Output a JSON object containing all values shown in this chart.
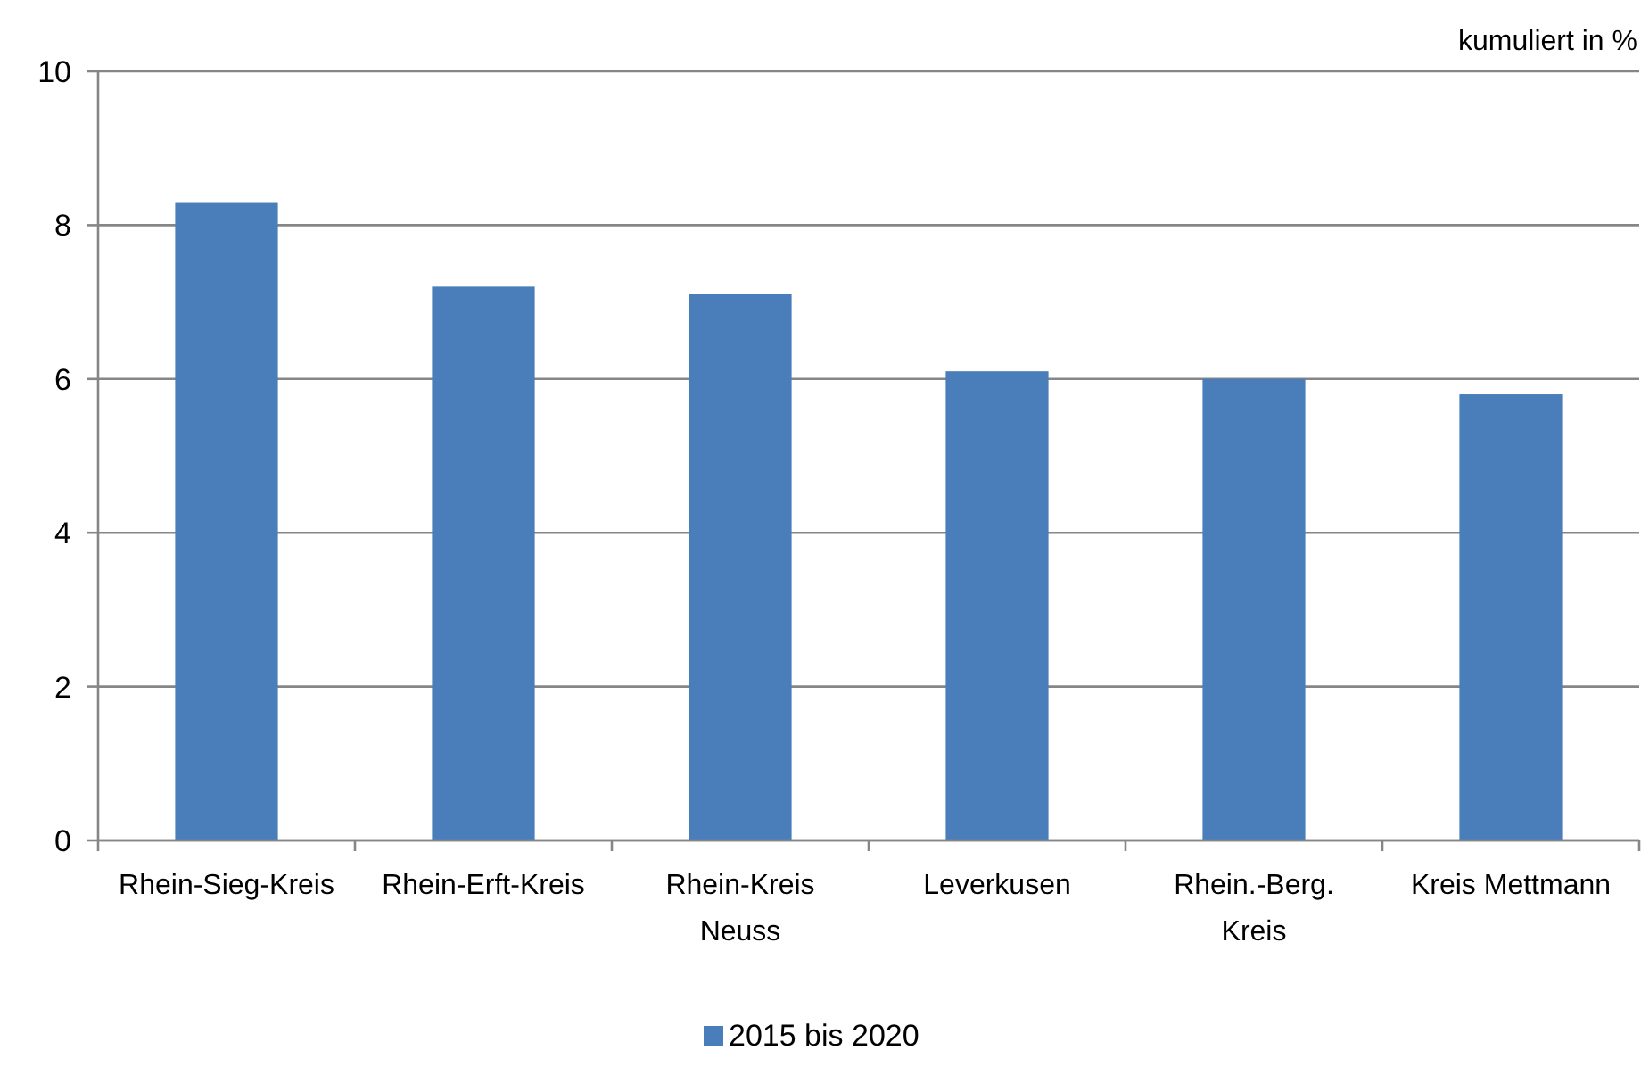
{
  "chart_data": {
    "type": "bar",
    "ylabel": "kumuliert in %",
    "categories": [
      "Rhein-Sieg-Kreis",
      "Rhein-Erft-Kreis",
      "Rhein-Kreis Neuss",
      "Leverkusen",
      "Rhein.-Berg. Kreis",
      "Kreis Mettmann"
    ],
    "series": [
      {
        "name": "2015 bis 2020",
        "color": "#4a7ebb",
        "values": [
          8.3,
          7.2,
          7.1,
          6.1,
          6.0,
          5.8
        ]
      }
    ],
    "ylim": [
      0,
      10
    ],
    "yticks": [
      0,
      2,
      4,
      6,
      8,
      10
    ],
    "grid": "y",
    "legend": "bottom"
  }
}
